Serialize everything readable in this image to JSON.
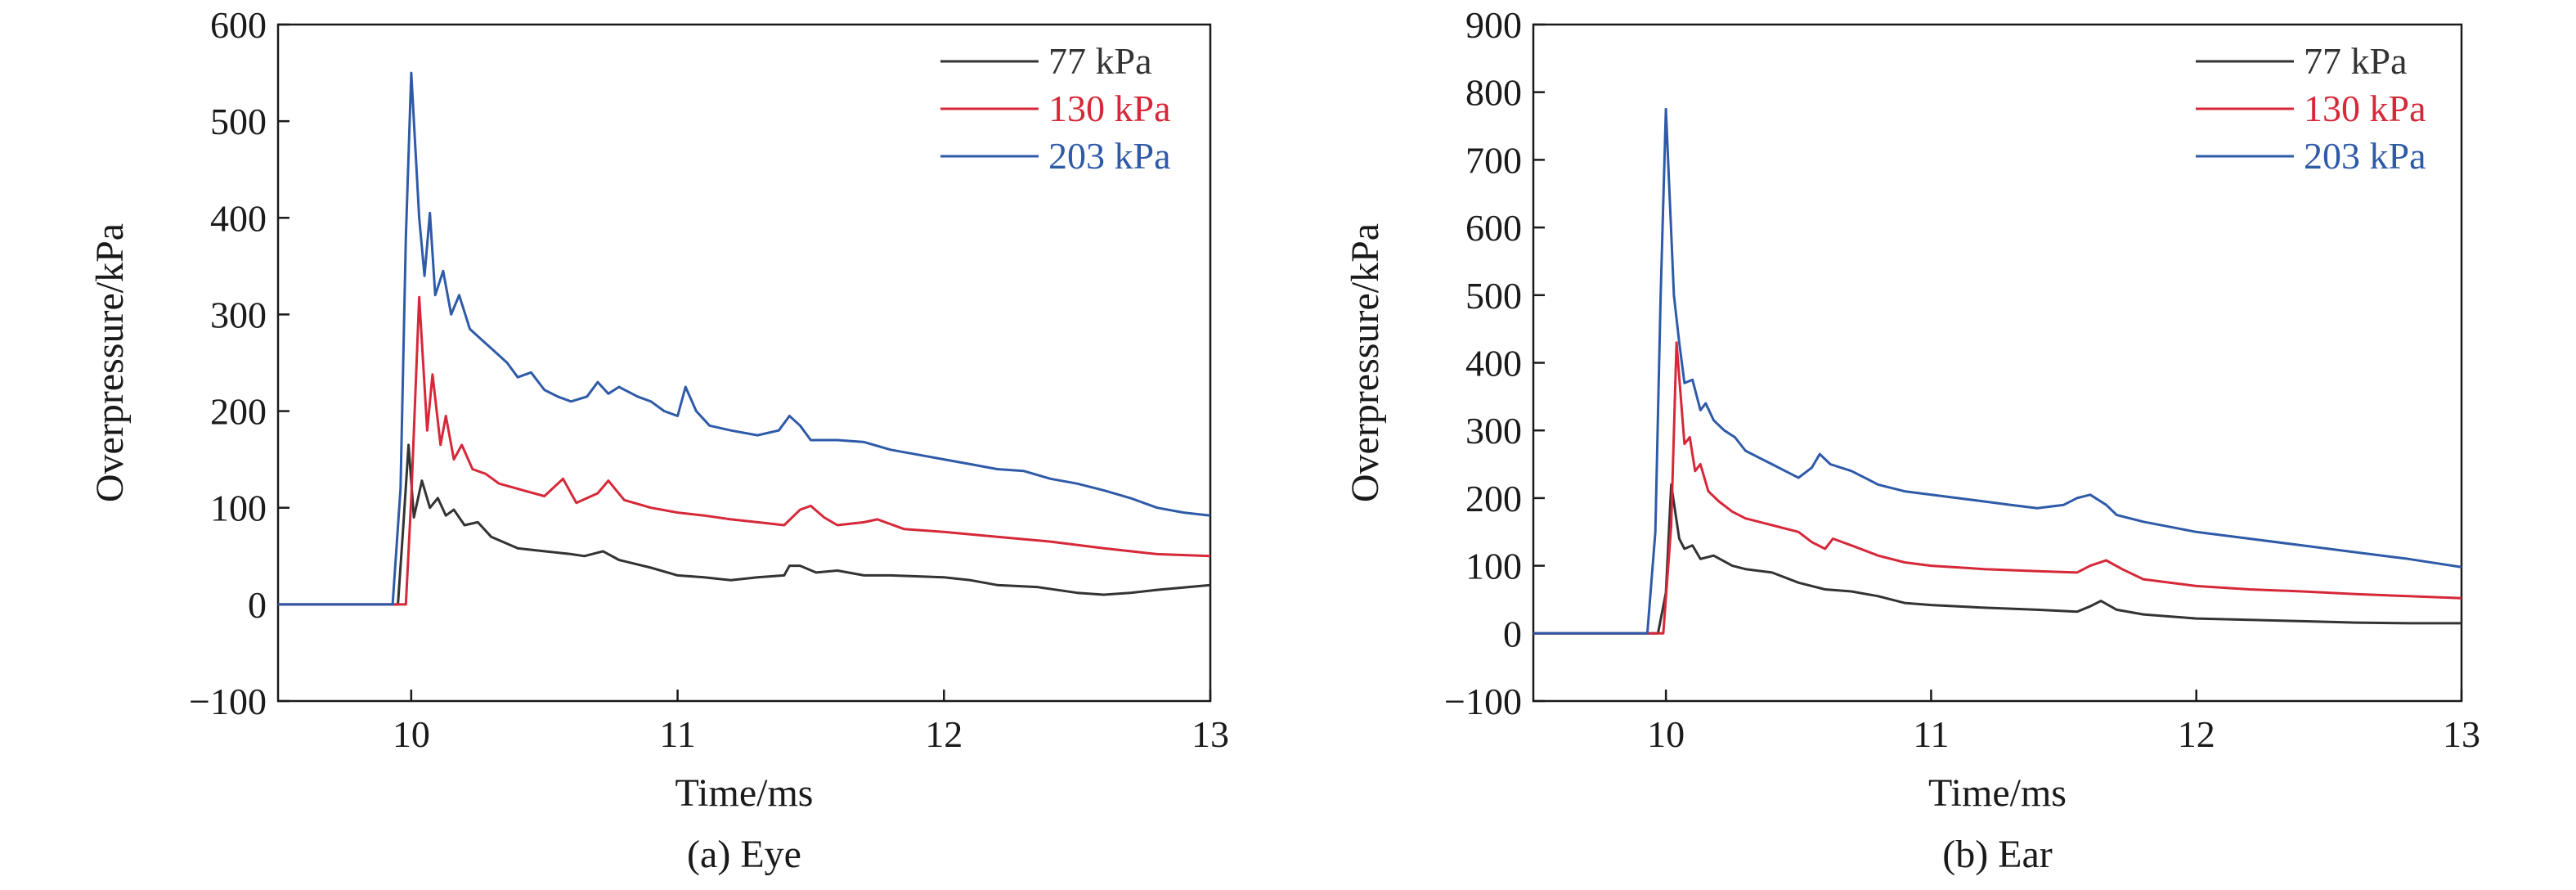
{
  "colors": {
    "77": "#333333",
    "130": "#d62839",
    "203": "#2f5aa8"
  },
  "chart_data": [
    {
      "type": "line",
      "caption": "(a) Eye",
      "xlabel": "Time/ms",
      "ylabel": "Overpressure/kPa",
      "xlim": [
        9.5,
        13
      ],
      "ylim": [
        -100,
        600
      ],
      "xticks": [
        10,
        11,
        12,
        13
      ],
      "yticks": [
        -100,
        0,
        100,
        200,
        300,
        400,
        500,
        600
      ],
      "grid": false,
      "legend": "top-right",
      "series": [
        {
          "name": "77 kPa",
          "color": "#333333",
          "points": [
            [
              9.5,
              0
            ],
            [
              9.95,
              0
            ],
            [
              9.97,
              80
            ],
            [
              9.99,
              165
            ],
            [
              10.01,
              90
            ],
            [
              10.04,
              128
            ],
            [
              10.07,
              100
            ],
            [
              10.1,
              110
            ],
            [
              10.13,
              92
            ],
            [
              10.16,
              98
            ],
            [
              10.2,
              82
            ],
            [
              10.25,
              85
            ],
            [
              10.3,
              70
            ],
            [
              10.4,
              58
            ],
            [
              10.5,
              55
            ],
            [
              10.6,
              52
            ],
            [
              10.65,
              50
            ],
            [
              10.72,
              55
            ],
            [
              10.78,
              46
            ],
            [
              10.9,
              38
            ],
            [
              11.0,
              30
            ],
            [
              11.1,
              28
            ],
            [
              11.2,
              25
            ],
            [
              11.3,
              28
            ],
            [
              11.4,
              30
            ],
            [
              11.42,
              40
            ],
            [
              11.46,
              40
            ],
            [
              11.52,
              33
            ],
            [
              11.6,
              35
            ],
            [
              11.7,
              30
            ],
            [
              11.8,
              30
            ],
            [
              12.0,
              28
            ],
            [
              12.1,
              25
            ],
            [
              12.2,
              20
            ],
            [
              12.35,
              18
            ],
            [
              12.5,
              12
            ],
            [
              12.6,
              10
            ],
            [
              12.7,
              12
            ],
            [
              12.8,
              15
            ],
            [
              13.0,
              20
            ]
          ]
        },
        {
          "name": "130 kPa",
          "color": "#d62839",
          "points": [
            [
              9.5,
              0
            ],
            [
              9.98,
              0
            ],
            [
              10.0,
              110
            ],
            [
              10.03,
              318
            ],
            [
              10.06,
              180
            ],
            [
              10.08,
              238
            ],
            [
              10.11,
              165
            ],
            [
              10.13,
              195
            ],
            [
              10.16,
              150
            ],
            [
              10.19,
              165
            ],
            [
              10.23,
              140
            ],
            [
              10.28,
              135
            ],
            [
              10.33,
              125
            ],
            [
              10.42,
              118
            ],
            [
              10.5,
              112
            ],
            [
              10.57,
              130
            ],
            [
              10.62,
              105
            ],
            [
              10.7,
              115
            ],
            [
              10.74,
              128
            ],
            [
              10.8,
              108
            ],
            [
              10.9,
              100
            ],
            [
              11.0,
              95
            ],
            [
              11.1,
              92
            ],
            [
              11.2,
              88
            ],
            [
              11.3,
              85
            ],
            [
              11.4,
              82
            ],
            [
              11.46,
              98
            ],
            [
              11.5,
              102
            ],
            [
              11.55,
              90
            ],
            [
              11.6,
              82
            ],
            [
              11.7,
              85
            ],
            [
              11.75,
              88
            ],
            [
              11.85,
              78
            ],
            [
              12.0,
              75
            ],
            [
              12.2,
              70
            ],
            [
              12.4,
              65
            ],
            [
              12.6,
              58
            ],
            [
              12.8,
              52
            ],
            [
              13.0,
              50
            ]
          ]
        },
        {
          "name": "203 kPa",
          "color": "#2f5aa8",
          "points": [
            [
              9.5,
              0
            ],
            [
              9.93,
              0
            ],
            [
              9.96,
              120
            ],
            [
              9.98,
              380
            ],
            [
              10.0,
              550
            ],
            [
              10.03,
              400
            ],
            [
              10.05,
              340
            ],
            [
              10.07,
              405
            ],
            [
              10.09,
              320
            ],
            [
              10.12,
              345
            ],
            [
              10.15,
              300
            ],
            [
              10.18,
              320
            ],
            [
              10.22,
              285
            ],
            [
              10.26,
              275
            ],
            [
              10.3,
              265
            ],
            [
              10.36,
              250
            ],
            [
              10.4,
              235
            ],
            [
              10.45,
              240
            ],
            [
              10.5,
              222
            ],
            [
              10.55,
              215
            ],
            [
              10.6,
              210
            ],
            [
              10.66,
              215
            ],
            [
              10.7,
              230
            ],
            [
              10.74,
              218
            ],
            [
              10.78,
              225
            ],
            [
              10.85,
              215
            ],
            [
              10.9,
              210
            ],
            [
              10.95,
              200
            ],
            [
              11.0,
              195
            ],
            [
              11.03,
              225
            ],
            [
              11.07,
              200
            ],
            [
              11.12,
              185
            ],
            [
              11.2,
              180
            ],
            [
              11.3,
              175
            ],
            [
              11.38,
              180
            ],
            [
              11.42,
              195
            ],
            [
              11.46,
              185
            ],
            [
              11.5,
              170
            ],
            [
              11.6,
              170
            ],
            [
              11.7,
              168
            ],
            [
              11.8,
              160
            ],
            [
              11.9,
              155
            ],
            [
              12.0,
              150
            ],
            [
              12.1,
              145
            ],
            [
              12.2,
              140
            ],
            [
              12.3,
              138
            ],
            [
              12.4,
              130
            ],
            [
              12.5,
              125
            ],
            [
              12.6,
              118
            ],
            [
              12.7,
              110
            ],
            [
              12.8,
              100
            ],
            [
              12.9,
              95
            ],
            [
              13.0,
              92
            ]
          ]
        }
      ]
    },
    {
      "type": "line",
      "caption": "(b) Ear",
      "xlabel": "Time/ms",
      "ylabel": "Overpressure/kPa",
      "xlim": [
        9.5,
        13
      ],
      "ylim": [
        -100,
        900
      ],
      "xticks": [
        10,
        11,
        12,
        13
      ],
      "yticks": [
        -100,
        0,
        100,
        200,
        300,
        400,
        500,
        600,
        700,
        800,
        900
      ],
      "grid": false,
      "legend": "top-right",
      "series": [
        {
          "name": "77 kPa",
          "color": "#333333",
          "points": [
            [
              9.5,
              0
            ],
            [
              9.97,
              0
            ],
            [
              10.0,
              60
            ],
            [
              10.02,
              220
            ],
            [
              10.05,
              140
            ],
            [
              10.07,
              125
            ],
            [
              10.1,
              130
            ],
            [
              10.13,
              110
            ],
            [
              10.18,
              115
            ],
            [
              10.25,
              100
            ],
            [
              10.3,
              95
            ],
            [
              10.4,
              90
            ],
            [
              10.5,
              75
            ],
            [
              10.6,
              65
            ],
            [
              10.7,
              62
            ],
            [
              10.8,
              55
            ],
            [
              10.9,
              45
            ],
            [
              11.0,
              42
            ],
            [
              11.2,
              38
            ],
            [
              11.4,
              35
            ],
            [
              11.55,
              32
            ],
            [
              11.6,
              40
            ],
            [
              11.64,
              48
            ],
            [
              11.7,
              35
            ],
            [
              11.8,
              28
            ],
            [
              12.0,
              22
            ],
            [
              12.2,
              20
            ],
            [
              12.4,
              18
            ],
            [
              12.6,
              16
            ],
            [
              12.8,
              15
            ],
            [
              13.0,
              15
            ]
          ]
        },
        {
          "name": "130 kPa",
          "color": "#d62839",
          "points": [
            [
              9.5,
              0
            ],
            [
              9.99,
              0
            ],
            [
              10.02,
              160
            ],
            [
              10.04,
              430
            ],
            [
              10.07,
              280
            ],
            [
              10.09,
              290
            ],
            [
              10.11,
              240
            ],
            [
              10.13,
              250
            ],
            [
              10.16,
              210
            ],
            [
              10.2,
              195
            ],
            [
              10.25,
              180
            ],
            [
              10.3,
              170
            ],
            [
              10.4,
              160
            ],
            [
              10.5,
              150
            ],
            [
              10.55,
              135
            ],
            [
              10.6,
              125
            ],
            [
              10.63,
              140
            ],
            [
              10.7,
              130
            ],
            [
              10.8,
              115
            ],
            [
              10.9,
              105
            ],
            [
              11.0,
              100
            ],
            [
              11.2,
              95
            ],
            [
              11.4,
              92
            ],
            [
              11.55,
              90
            ],
            [
              11.6,
              100
            ],
            [
              11.66,
              108
            ],
            [
              11.72,
              95
            ],
            [
              11.8,
              80
            ],
            [
              12.0,
              70
            ],
            [
              12.2,
              65
            ],
            [
              12.4,
              62
            ],
            [
              12.6,
              58
            ],
            [
              12.8,
              55
            ],
            [
              13.0,
              52
            ]
          ]
        },
        {
          "name": "203 kPa",
          "color": "#2f5aa8",
          "points": [
            [
              9.5,
              0
            ],
            [
              9.93,
              0
            ],
            [
              9.96,
              150
            ],
            [
              9.98,
              500
            ],
            [
              10.0,
              775
            ],
            [
              10.03,
              500
            ],
            [
              10.05,
              430
            ],
            [
              10.07,
              370
            ],
            [
              10.1,
              375
            ],
            [
              10.13,
              330
            ],
            [
              10.15,
              340
            ],
            [
              10.18,
              315
            ],
            [
              10.22,
              300
            ],
            [
              10.26,
              290
            ],
            [
              10.3,
              270
            ],
            [
              10.35,
              260
            ],
            [
              10.4,
              250
            ],
            [
              10.45,
              240
            ],
            [
              10.5,
              230
            ],
            [
              10.55,
              245
            ],
            [
              10.58,
              265
            ],
            [
              10.62,
              250
            ],
            [
              10.7,
              240
            ],
            [
              10.8,
              220
            ],
            [
              10.9,
              210
            ],
            [
              11.0,
              205
            ],
            [
              11.1,
              200
            ],
            [
              11.2,
              195
            ],
            [
              11.3,
              190
            ],
            [
              11.4,
              185
            ],
            [
              11.5,
              190
            ],
            [
              11.55,
              200
            ],
            [
              11.6,
              205
            ],
            [
              11.66,
              190
            ],
            [
              11.7,
              175
            ],
            [
              11.8,
              165
            ],
            [
              12.0,
              150
            ],
            [
              12.2,
              140
            ],
            [
              12.4,
              130
            ],
            [
              12.6,
              120
            ],
            [
              12.8,
              110
            ],
            [
              13.0,
              98
            ]
          ]
        }
      ]
    }
  ]
}
